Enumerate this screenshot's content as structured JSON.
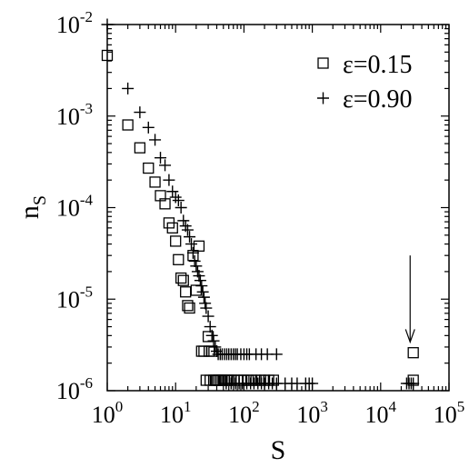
{
  "chart_data": {
    "type": "scatter",
    "title": "",
    "xlabel": "S",
    "ylabel_main": "n",
    "ylabel_sub": "S",
    "xscale": "log",
    "yscale": "log",
    "xlim": [
      1,
      100000
    ],
    "ylim": [
      1e-06,
      0.01
    ],
    "grid": false,
    "legend_position": "top-right",
    "x_ticks": [
      {
        "base": "10",
        "exp": "0",
        "value": 1
      },
      {
        "base": "10",
        "exp": "1",
        "value": 10
      },
      {
        "base": "10",
        "exp": "2",
        "value": 100
      },
      {
        "base": "10",
        "exp": "3",
        "value": 1000
      },
      {
        "base": "10",
        "exp": "4",
        "value": 10000
      },
      {
        "base": "10",
        "exp": "5",
        "value": 100000
      }
    ],
    "y_ticks": [
      {
        "base": "10",
        "exp": "-6",
        "value": 1e-06
      },
      {
        "base": "10",
        "exp": "-5",
        "value": 1e-05
      },
      {
        "base": "10",
        "exp": "-4",
        "value": 0.0001
      },
      {
        "base": "10",
        "exp": "-3",
        "value": 0.001
      },
      {
        "base": "10",
        "exp": "-2",
        "value": 0.01
      }
    ],
    "series": [
      {
        "name": "ε=0.15",
        "marker": "square",
        "points": [
          [
            1,
            0.0046
          ],
          [
            2,
            0.0008
          ],
          [
            3,
            0.00045
          ],
          [
            4,
            0.00027
          ],
          [
            5,
            0.00019
          ],
          [
            6,
            0.000135
          ],
          [
            7,
            0.00011
          ],
          [
            8,
            6.8e-05
          ],
          [
            9,
            6e-05
          ],
          [
            10,
            4.3e-05
          ],
          [
            11,
            2.7e-05
          ],
          [
            12,
            1.7e-05
          ],
          [
            13,
            1.6e-05
          ],
          [
            14,
            1.2e-05
          ],
          [
            15,
            8.5e-06
          ],
          [
            16,
            8e-06
          ],
          [
            18,
            3e-05
          ],
          [
            20,
            1.25e-05
          ],
          [
            22,
            3.8e-05
          ],
          [
            24,
            2.7e-06
          ],
          [
            26,
            2.7e-06
          ],
          [
            28,
            1.3e-06
          ],
          [
            30,
            3.9e-06
          ],
          [
            31,
            2.7e-06
          ],
          [
            32,
            1.3e-06
          ],
          [
            34,
            2.7e-06
          ],
          [
            36,
            1.3e-06
          ],
          [
            38,
            1.3e-06
          ],
          [
            40,
            1.3e-06
          ],
          [
            42,
            1.3e-06
          ],
          [
            45,
            1.3e-06
          ],
          [
            48,
            1.3e-06
          ],
          [
            52,
            1.3e-06
          ],
          [
            56,
            1.3e-06
          ],
          [
            60,
            1.3e-06
          ],
          [
            65,
            1.3e-06
          ],
          [
            72,
            1.3e-06
          ],
          [
            80,
            1.3e-06
          ],
          [
            90,
            1.3e-06
          ],
          [
            100,
            1.3e-06
          ],
          [
            115,
            1.3e-06
          ],
          [
            130,
            1.3e-06
          ],
          [
            150,
            1.3e-06
          ],
          [
            175,
            1.3e-06
          ],
          [
            200,
            1.3e-06
          ],
          [
            230,
            1.3e-06
          ],
          [
            270,
            1.3e-06
          ],
          [
            30000,
            1.3e-06
          ],
          [
            30000,
            2.6e-06
          ]
        ]
      },
      {
        "name": "ε=0.90",
        "marker": "plus",
        "points": [
          [
            1,
            0.01
          ],
          [
            2,
            0.002
          ],
          [
            3,
            0.0011
          ],
          [
            4,
            0.00075
          ],
          [
            5,
            0.00055
          ],
          [
            6,
            0.00035
          ],
          [
            7,
            0.00029
          ],
          [
            8,
            0.0002
          ],
          [
            9,
            0.00015
          ],
          [
            10,
            0.00013
          ],
          [
            11,
            0.00012
          ],
          [
            12,
            0.0001
          ],
          [
            13,
            7.2e-05
          ],
          [
            14,
            6.3e-05
          ],
          [
            15,
            5.7e-05
          ],
          [
            16,
            4.8e-05
          ],
          [
            17,
            4e-05
          ],
          [
            18,
            3.2e-05
          ],
          [
            19,
            2.6e-05
          ],
          [
            20,
            2.3e-05
          ],
          [
            21,
            2e-05
          ],
          [
            22,
            1.8e-05
          ],
          [
            23,
            1.6e-05
          ],
          [
            24,
            1.4e-05
          ],
          [
            25,
            1.2e-05
          ],
          [
            26,
            1.05e-05
          ],
          [
            27,
            9e-06
          ],
          [
            28,
            8e-06
          ],
          [
            30,
            6.5e-06
          ],
          [
            32,
            5e-06
          ],
          [
            34,
            4e-06
          ],
          [
            36,
            3.5e-06
          ],
          [
            38,
            3e-06
          ],
          [
            40,
            2.7e-06
          ],
          [
            42,
            2.5e-06
          ],
          [
            45,
            2.5e-06
          ],
          [
            48,
            2.5e-06
          ],
          [
            52,
            2.5e-06
          ],
          [
            56,
            2.5e-06
          ],
          [
            60,
            2.5e-06
          ],
          [
            65,
            2.5e-06
          ],
          [
            70,
            2.5e-06
          ],
          [
            75,
            2.5e-06
          ],
          [
            80,
            2.5e-06
          ],
          [
            90,
            2.5e-06
          ],
          [
            100,
            2.5e-06
          ],
          [
            110,
            2.5e-06
          ],
          [
            120,
            2.5e-06
          ],
          [
            150,
            2.5e-06
          ],
          [
            180,
            2.5e-06
          ],
          [
            220,
            2.5e-06
          ],
          [
            300,
            2.5e-06
          ],
          [
            55,
            1.2e-06
          ],
          [
            65,
            1.2e-06
          ],
          [
            75,
            1.2e-06
          ],
          [
            85,
            1.2e-06
          ],
          [
            95,
            1.2e-06
          ],
          [
            110,
            1.2e-06
          ],
          [
            125,
            1.2e-06
          ],
          [
            140,
            1.2e-06
          ],
          [
            160,
            1.2e-06
          ],
          [
            180,
            1.2e-06
          ],
          [
            200,
            1.2e-06
          ],
          [
            230,
            1.2e-06
          ],
          [
            260,
            1.2e-06
          ],
          [
            300,
            1.2e-06
          ],
          [
            400,
            1.2e-06
          ],
          [
            500,
            1.2e-06
          ],
          [
            600,
            1.2e-06
          ],
          [
            800,
            1.2e-06
          ],
          [
            900,
            1.2e-06
          ],
          [
            1000,
            1.2e-06
          ],
          [
            24000,
            1.2e-06
          ],
          [
            26000,
            1.2e-06
          ],
          [
            28000,
            1.2e-06
          ],
          [
            30000,
            1.2e-06
          ]
        ]
      }
    ],
    "annotations": [
      {
        "type": "arrow",
        "x": 27000,
        "y_from": 3e-05,
        "y_to": 3.4e-06
      }
    ]
  }
}
